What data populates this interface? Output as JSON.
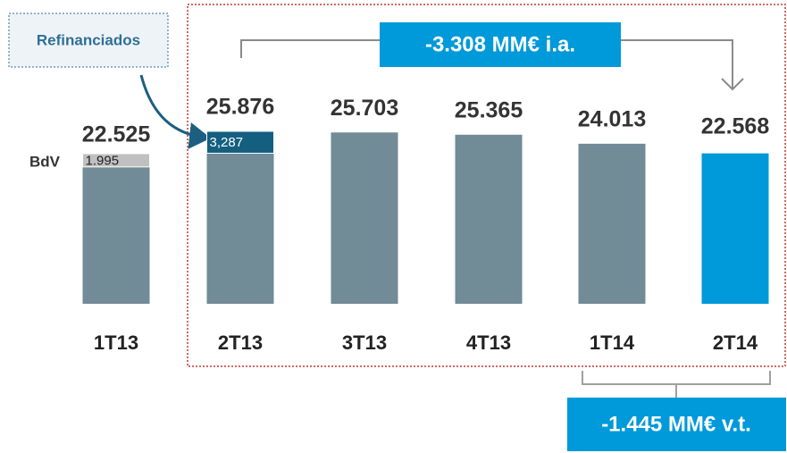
{
  "chart_data": {
    "type": "bar",
    "categories": [
      "1T13",
      "2T13",
      "3T13",
      "4T13",
      "1T14",
      "2T14"
    ],
    "values": [
      22525,
      25876,
      25703,
      25365,
      24013,
      22568
    ],
    "value_labels": [
      "22.525",
      "25.876",
      "25.703",
      "25.365",
      "24.013",
      "22.568"
    ],
    "colors": [
      "#718b97",
      "#718b97",
      "#718b97",
      "#718b97",
      "#718b97",
      "#0099d9"
    ],
    "series": [
      {
        "name": "BdV",
        "color": "#c0c0c0",
        "values": [
          1995,
          null,
          null,
          null,
          null,
          null
        ],
        "value_labels": [
          "1.995",
          null,
          null,
          null,
          null,
          null
        ]
      },
      {
        "name": "Refinanciados",
        "color": "#145f80",
        "values": [
          null,
          3287,
          null,
          null,
          null,
          null
        ],
        "value_labels": [
          null,
          "3,287",
          null,
          null,
          null,
          null
        ]
      }
    ],
    "annotations": [
      "-3.308 MM€ i.a.",
      "-1.445 MM€ v.t."
    ]
  }
}
